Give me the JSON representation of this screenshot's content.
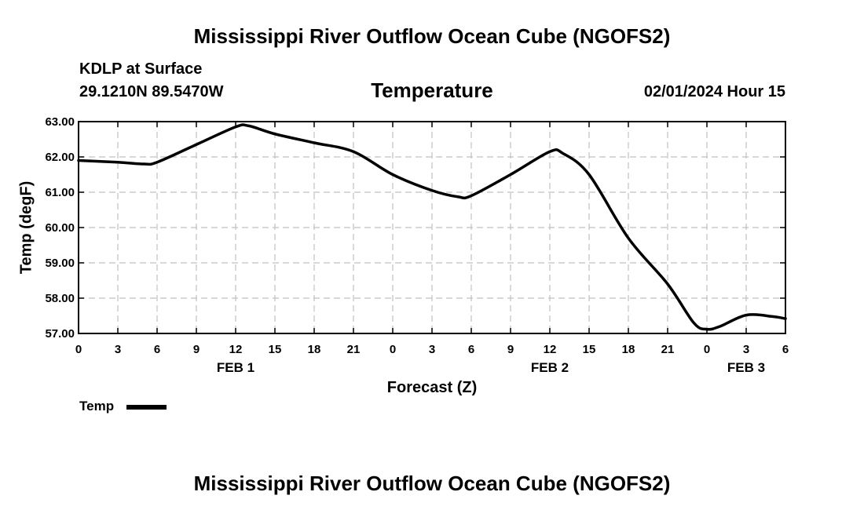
{
  "header": {
    "title_top": "Mississippi River Outflow Ocean Cube (NGOFS2)",
    "station": "KDLP at Surface",
    "coords": "29.1210N  89.5470W",
    "datetime": "02/01/2024 Hour 15",
    "title_bottom": "Mississippi River Outflow Ocean Cube (NGOFS2)"
  },
  "legend": {
    "label": "Temp",
    "color": "#000000"
  },
  "chart_data": {
    "type": "line",
    "title": "Temperature",
    "xlabel": "Forecast (Z)",
    "ylabel": "Temp (degF)",
    "x_unit": "hours from FEB 1 00Z",
    "xlim": [
      0,
      54
    ],
    "ylim": [
      57.0,
      63.0
    ],
    "grid": true,
    "x_ticks": [
      {
        "x": 0,
        "label": "0"
      },
      {
        "x": 3,
        "label": "3"
      },
      {
        "x": 6,
        "label": "6"
      },
      {
        "x": 9,
        "label": "9"
      },
      {
        "x": 12,
        "label": "12"
      },
      {
        "x": 15,
        "label": "15"
      },
      {
        "x": 18,
        "label": "18"
      },
      {
        "x": 21,
        "label": "21"
      },
      {
        "x": 24,
        "label": "0"
      },
      {
        "x": 27,
        "label": "3"
      },
      {
        "x": 30,
        "label": "6"
      },
      {
        "x": 33,
        "label": "9"
      },
      {
        "x": 36,
        "label": "12"
      },
      {
        "x": 39,
        "label": "15"
      },
      {
        "x": 42,
        "label": "18"
      },
      {
        "x": 45,
        "label": "21"
      },
      {
        "x": 48,
        "label": "0"
      },
      {
        "x": 51,
        "label": "3"
      },
      {
        "x": 54,
        "label": "6"
      }
    ],
    "date_labels": [
      {
        "x": 12,
        "label": "FEB 1"
      },
      {
        "x": 36,
        "label": "FEB 2"
      },
      {
        "x": 51,
        "label": "FEB 3"
      }
    ],
    "y_ticks": [
      "57.00",
      "58.00",
      "59.00",
      "60.00",
      "61.00",
      "62.00",
      "63.00"
    ],
    "series": [
      {
        "name": "Temp",
        "color": "#000000",
        "x": [
          0,
          3,
          5,
          6,
          9,
          12,
          13,
          15,
          18,
          21,
          24,
          27,
          29,
          30,
          33,
          36,
          37,
          39,
          42,
          45,
          47,
          48,
          49,
          51,
          53,
          54
        ],
        "y": [
          61.9,
          61.85,
          61.8,
          61.85,
          62.35,
          62.85,
          62.88,
          62.65,
          62.4,
          62.15,
          61.5,
          61.05,
          60.87,
          60.9,
          61.5,
          62.15,
          62.1,
          61.5,
          59.7,
          58.4,
          57.3,
          57.12,
          57.2,
          57.52,
          57.48,
          57.42
        ]
      }
    ]
  }
}
